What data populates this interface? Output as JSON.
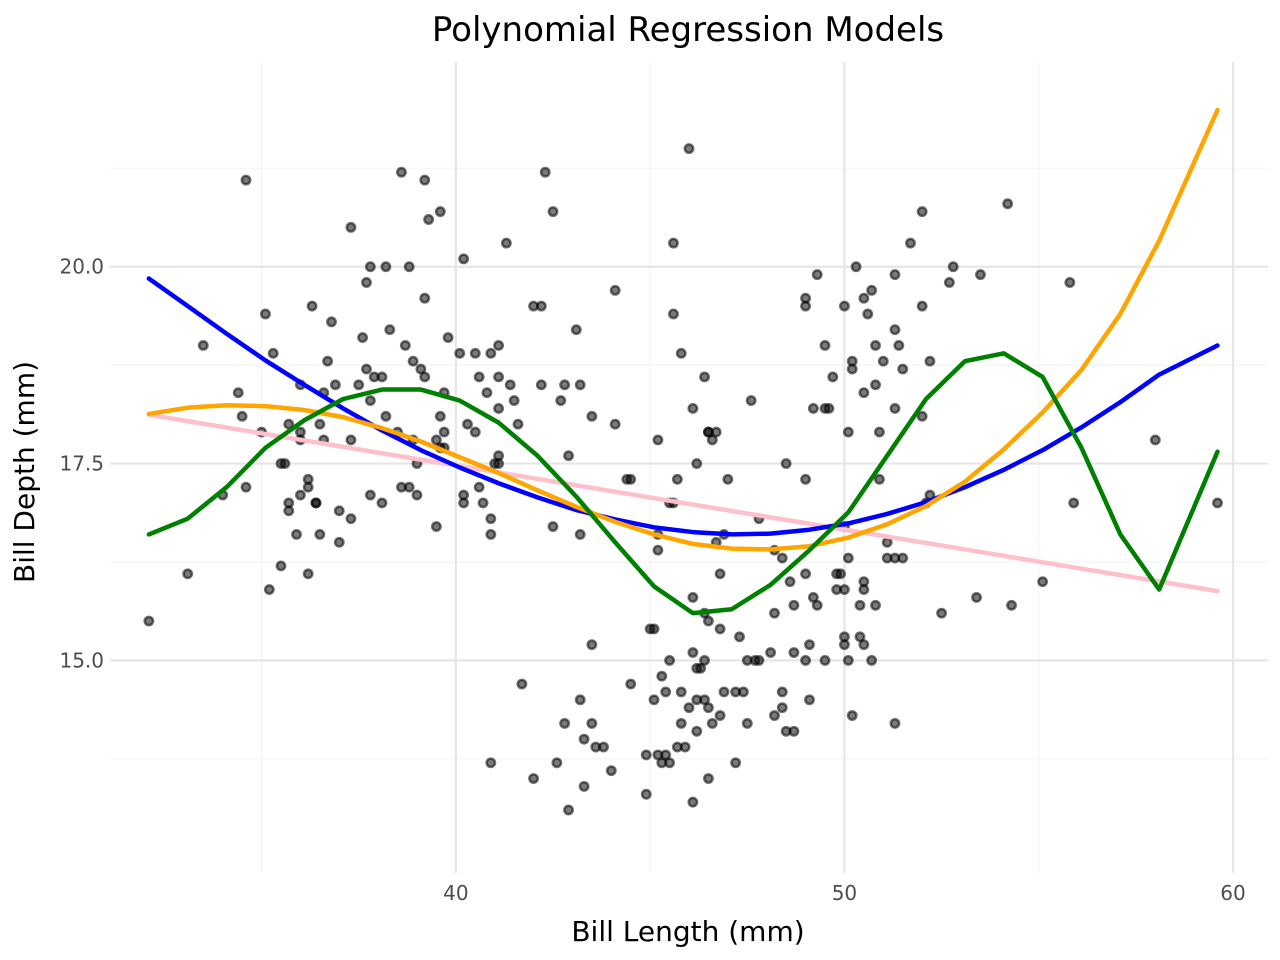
{
  "chart_data": {
    "type": "scatter",
    "title": "Polynomial Regression Models",
    "xlabel": "Bill Length (mm)",
    "ylabel": "Bill Depth (mm)",
    "xlim": [
      31.1,
      60.9
    ],
    "ylim": [
      12.3,
      22.6
    ],
    "x_ticks": [
      40,
      50,
      60
    ],
    "y_ticks": [
      15.0,
      17.5,
      20.0
    ],
    "x_tick_labels": [
      "40",
      "50",
      "60"
    ],
    "y_tick_labels": [
      "15.0",
      "17.5",
      "20.0"
    ],
    "grid": true,
    "legend": "none",
    "points": [
      [
        32.1,
        15.5
      ],
      [
        33.1,
        16.1
      ],
      [
        33.5,
        19.0
      ],
      [
        34.0,
        17.1
      ],
      [
        34.4,
        18.4
      ],
      [
        34.5,
        18.1
      ],
      [
        34.6,
        21.1
      ],
      [
        34.6,
        17.2
      ],
      [
        35.0,
        17.9
      ],
      [
        35.1,
        19.4
      ],
      [
        35.2,
        15.9
      ],
      [
        35.3,
        18.9
      ],
      [
        35.5,
        16.2
      ],
      [
        35.5,
        17.5
      ],
      [
        35.6,
        17.5
      ],
      [
        35.7,
        16.9
      ],
      [
        35.7,
        17.0
      ],
      [
        35.7,
        18.0
      ],
      [
        35.9,
        16.6
      ],
      [
        36.0,
        17.8
      ],
      [
        36.0,
        17.9
      ],
      [
        36.0,
        18.5
      ],
      [
        36.0,
        17.1
      ],
      [
        36.2,
        16.1
      ],
      [
        36.2,
        17.2
      ],
      [
        36.2,
        17.3
      ],
      [
        36.3,
        19.5
      ],
      [
        36.4,
        17.0
      ],
      [
        36.5,
        16.6
      ],
      [
        36.5,
        18.0
      ],
      [
        36.6,
        17.8
      ],
      [
        36.6,
        18.4
      ],
      [
        36.7,
        18.8
      ],
      [
        36.8,
        19.3
      ],
      [
        36.9,
        18.5
      ],
      [
        37.0,
        16.5
      ],
      [
        37.0,
        16.9
      ],
      [
        37.3,
        16.8
      ],
      [
        37.3,
        17.8
      ],
      [
        37.3,
        20.5
      ],
      [
        37.5,
        18.5
      ],
      [
        37.6,
        19.1
      ],
      [
        37.7,
        18.7
      ],
      [
        37.7,
        19.8
      ],
      [
        37.8,
        17.1
      ],
      [
        37.8,
        18.3
      ],
      [
        37.8,
        20.0
      ],
      [
        37.9,
        18.6
      ],
      [
        38.1,
        17.0
      ],
      [
        38.1,
        18.6
      ],
      [
        38.2,
        18.1
      ],
      [
        38.2,
        20.0
      ],
      [
        38.3,
        19.2
      ],
      [
        38.5,
        17.9
      ],
      [
        38.6,
        17.2
      ],
      [
        38.6,
        21.2
      ],
      [
        38.7,
        19.0
      ],
      [
        38.8,
        17.2
      ],
      [
        38.8,
        20.0
      ],
      [
        38.9,
        17.8
      ],
      [
        38.9,
        18.8
      ],
      [
        39.0,
        17.1
      ],
      [
        39.0,
        17.5
      ],
      [
        39.1,
        18.7
      ],
      [
        39.2,
        18.6
      ],
      [
        39.2,
        19.6
      ],
      [
        39.2,
        21.1
      ],
      [
        39.3,
        20.6
      ],
      [
        39.5,
        16.7
      ],
      [
        39.5,
        17.8
      ],
      [
        39.6,
        17.7
      ],
      [
        39.6,
        18.1
      ],
      [
        39.6,
        20.7
      ],
      [
        39.7,
        17.7
      ],
      [
        39.7,
        17.9
      ],
      [
        39.7,
        18.4
      ],
      [
        39.8,
        19.1
      ],
      [
        40.1,
        18.9
      ],
      [
        40.2,
        17.0
      ],
      [
        40.2,
        17.1
      ],
      [
        40.2,
        20.1
      ],
      [
        40.3,
        18.0
      ],
      [
        40.5,
        18.9
      ],
      [
        40.5,
        17.9
      ],
      [
        40.6,
        17.2
      ],
      [
        40.6,
        18.6
      ],
      [
        40.7,
        17.0
      ],
      [
        40.8,
        18.4
      ],
      [
        40.9,
        16.6
      ],
      [
        40.9,
        16.8
      ],
      [
        40.9,
        18.9
      ],
      [
        41.0,
        17.5
      ],
      [
        41.1,
        18.2
      ],
      [
        41.1,
        19.0
      ],
      [
        41.1,
        17.6
      ],
      [
        41.1,
        18.6
      ],
      [
        41.3,
        20.3
      ],
      [
        41.4,
        18.5
      ],
      [
        41.5,
        18.3
      ],
      [
        41.6,
        18.0
      ],
      [
        42.0,
        19.5
      ],
      [
        42.2,
        18.5
      ],
      [
        42.2,
        19.5
      ],
      [
        42.3,
        21.2
      ],
      [
        42.5,
        16.7
      ],
      [
        42.5,
        20.7
      ],
      [
        42.7,
        18.3
      ],
      [
        42.8,
        18.5
      ],
      [
        42.9,
        17.6
      ],
      [
        43.1,
        19.2
      ],
      [
        43.2,
        16.6
      ],
      [
        43.2,
        18.5
      ],
      [
        43.5,
        18.1
      ],
      [
        44.1,
        18.0
      ],
      [
        44.1,
        19.7
      ],
      [
        44.5,
        17.3
      ],
      [
        45.2,
        17.8
      ],
      [
        45.6,
        20.3
      ],
      [
        45.6,
        19.4
      ],
      [
        45.8,
        18.9
      ],
      [
        46.0,
        21.5
      ],
      [
        46.1,
        18.2
      ],
      [
        46.2,
        17.5
      ],
      [
        46.4,
        18.6
      ],
      [
        46.5,
        17.9
      ],
      [
        46.6,
        17.8
      ],
      [
        46.7,
        17.9
      ],
      [
        47.0,
        17.3
      ],
      [
        47.6,
        18.3
      ],
      [
        48.5,
        17.5
      ],
      [
        49.0,
        19.5
      ],
      [
        49.0,
        19.6
      ],
      [
        49.2,
        18.2
      ],
      [
        49.3,
        19.9
      ],
      [
        49.5,
        19.0
      ],
      [
        49.6,
        18.2
      ],
      [
        49.7,
        18.6
      ],
      [
        50.0,
        19.5
      ],
      [
        50.1,
        17.9
      ],
      [
        50.2,
        18.8
      ],
      [
        50.2,
        18.7
      ],
      [
        50.3,
        20.0
      ],
      [
        50.5,
        18.4
      ],
      [
        50.5,
        19.6
      ],
      [
        50.6,
        19.4
      ],
      [
        50.7,
        19.7
      ],
      [
        50.8,
        18.5
      ],
      [
        50.8,
        19.0
      ],
      [
        50.9,
        17.9
      ],
      [
        51.0,
        18.8
      ],
      [
        51.3,
        18.2
      ],
      [
        51.3,
        19.2
      ],
      [
        51.3,
        19.9
      ],
      [
        51.4,
        19.0
      ],
      [
        51.5,
        18.7
      ],
      [
        51.7,
        20.3
      ],
      [
        52.0,
        18.1
      ],
      [
        52.0,
        19.5
      ],
      [
        52.0,
        20.7
      ],
      [
        52.2,
        18.8
      ],
      [
        52.7,
        19.8
      ],
      [
        52.8,
        20.0
      ],
      [
        53.5,
        19.9
      ],
      [
        54.2,
        20.8
      ],
      [
        55.8,
        19.8
      ],
      [
        58.0,
        17.8
      ],
      [
        59.6,
        17.0
      ],
      [
        41.1,
        17.5
      ],
      [
        36.4,
        17.0
      ],
      [
        45.5,
        17.0
      ],
      [
        45.7,
        17.3
      ],
      [
        42.6,
        13.7
      ],
      [
        44.4,
        17.3
      ],
      [
        42.8,
        14.2
      ],
      [
        46.1,
        13.2
      ],
      [
        43.3,
        14.0
      ],
      [
        43.2,
        14.5
      ],
      [
        43.5,
        15.2
      ],
      [
        45.1,
        14.5
      ],
      [
        45.2,
        13.8
      ],
      [
        45.3,
        13.7
      ],
      [
        45.4,
        14.6
      ],
      [
        45.5,
        13.7
      ],
      [
        45.7,
        13.9
      ],
      [
        45.8,
        14.6
      ],
      [
        46.1,
        15.1
      ],
      [
        46.2,
        14.5
      ],
      [
        46.2,
        14.1
      ],
      [
        46.2,
        14.9
      ],
      [
        46.4,
        15.0
      ],
      [
        46.5,
        13.5
      ],
      [
        46.5,
        14.4
      ],
      [
        46.6,
        14.2
      ],
      [
        46.8,
        14.3
      ],
      [
        46.8,
        15.4
      ],
      [
        46.9,
        14.6
      ],
      [
        47.2,
        13.7
      ],
      [
        47.4,
        14.6
      ],
      [
        47.5,
        14.2
      ],
      [
        47.7,
        15.0
      ],
      [
        47.8,
        15.0
      ],
      [
        48.1,
        15.1
      ],
      [
        48.2,
        14.3
      ],
      [
        48.4,
        14.4
      ],
      [
        48.4,
        14.6
      ],
      [
        48.5,
        14.1
      ],
      [
        48.7,
        14.1
      ],
      [
        48.7,
        15.1
      ],
      [
        49.0,
        15.0
      ],
      [
        49.1,
        14.5
      ],
      [
        49.1,
        15.2
      ],
      [
        49.5,
        15.0
      ],
      [
        49.8,
        15.9
      ],
      [
        49.9,
        16.1
      ],
      [
        50.0,
        15.2
      ],
      [
        50.0,
        15.3
      ],
      [
        50.1,
        15.0
      ],
      [
        50.2,
        14.3
      ],
      [
        50.4,
        15.3
      ],
      [
        50.5,
        15.2
      ],
      [
        50.5,
        15.9
      ],
      [
        50.7,
        15.0
      ],
      [
        50.8,
        15.7
      ],
      [
        51.3,
        14.2
      ],
      [
        45.1,
        15.4
      ],
      [
        45.2,
        16.4
      ],
      [
        45.2,
        16.6
      ],
      [
        45.3,
        14.8
      ],
      [
        45.5,
        15.0
      ],
      [
        45.8,
        14.2
      ],
      [
        46.0,
        14.4
      ],
      [
        46.1,
        15.8
      ],
      [
        46.4,
        15.6
      ],
      [
        46.5,
        15.5
      ],
      [
        46.8,
        16.1
      ],
      [
        47.3,
        15.3
      ],
      [
        47.5,
        15.0
      ],
      [
        48.2,
        15.6
      ],
      [
        48.6,
        16.0
      ],
      [
        49.0,
        16.1
      ],
      [
        49.2,
        15.8
      ],
      [
        49.8,
        16.1
      ],
      [
        50.0,
        15.9
      ],
      [
        50.1,
        16.3
      ],
      [
        50.4,
        15.7
      ],
      [
        50.5,
        16.0
      ],
      [
        51.1,
        16.3
      ],
      [
        52.5,
        15.6
      ],
      [
        53.4,
        15.8
      ],
      [
        54.3,
        15.7
      ],
      [
        55.1,
        16.0
      ],
      [
        45.4,
        13.8
      ],
      [
        44.9,
        13.3
      ],
      [
        43.8,
        13.9
      ],
      [
        43.3,
        13.4
      ],
      [
        42.0,
        13.5
      ],
      [
        40.9,
        13.7
      ],
      [
        42.9,
        13.1
      ],
      [
        41.7,
        14.7
      ],
      [
        43.6,
        13.9
      ],
      [
        44.0,
        13.6
      ],
      [
        44.5,
        14.7
      ],
      [
        43.5,
        14.2
      ],
      [
        44.9,
        13.8
      ],
      [
        45.9,
        13.9
      ],
      [
        46.4,
        14.5
      ],
      [
        47.2,
        14.6
      ],
      [
        48.7,
        15.7
      ],
      [
        49.3,
        15.7
      ],
      [
        51.5,
        16.3
      ],
      [
        45.0,
        15.4
      ],
      [
        46.3,
        14.9
      ],
      [
        46.7,
        16.5
      ],
      [
        48.2,
        16.4
      ],
      [
        48.4,
        16.3
      ],
      [
        49.0,
        17.3
      ],
      [
        49.5,
        18.2
      ],
      [
        50.9,
        17.3
      ],
      [
        50.0,
        16.7
      ],
      [
        51.1,
        16.5
      ],
      [
        51.3,
        16.3
      ],
      [
        52.1,
        17.0
      ],
      [
        52.2,
        17.1
      ],
      [
        55.9,
        17.0
      ],
      [
        46.5,
        17.9
      ],
      [
        46.9,
        16.6
      ],
      [
        47.8,
        16.8
      ],
      [
        45.6,
        17.0
      ]
    ],
    "series": [
      {
        "color": "#ffc0cb",
        "x": [
          32.1,
          59.6
        ],
        "y": [
          18.12,
          15.88
        ]
      },
      {
        "color": "#0000ff",
        "x": [
          32.1,
          33.1,
          34.1,
          35.1,
          36.1,
          37.1,
          38.1,
          39.1,
          40.1,
          41.1,
          42.1,
          43.1,
          44.1,
          45.1,
          46.1,
          47.1,
          48.1,
          49.1,
          50.1,
          51.1,
          52.1,
          53.1,
          54.1,
          55.1,
          56.1,
          57.1,
          58.1,
          59.6
        ],
        "y": [
          19.85,
          19.5,
          19.15,
          18.81,
          18.5,
          18.2,
          17.92,
          17.67,
          17.45,
          17.25,
          17.07,
          16.91,
          16.79,
          16.69,
          16.63,
          16.6,
          16.61,
          16.66,
          16.74,
          16.86,
          17.01,
          17.2,
          17.42,
          17.67,
          17.96,
          18.28,
          18.63,
          19.0
        ]
      },
      {
        "color": "#ffa500",
        "x": [
          32.1,
          33.1,
          34.1,
          35.1,
          36.1,
          37.1,
          38.1,
          39.1,
          40.1,
          41.1,
          42.1,
          43.1,
          44.1,
          45.1,
          46.1,
          47.1,
          48.1,
          49.1,
          50.1,
          51.1,
          52.1,
          53.1,
          54.1,
          55.1,
          56.1,
          57.1,
          58.1,
          59.6
        ],
        "y": [
          18.13,
          18.21,
          18.24,
          18.23,
          18.18,
          18.09,
          17.95,
          17.78,
          17.58,
          17.38,
          17.16,
          16.95,
          16.76,
          16.6,
          16.48,
          16.42,
          16.41,
          16.45,
          16.56,
          16.73,
          16.96,
          17.27,
          17.68,
          18.15,
          18.69,
          19.4,
          20.33,
          21.99
        ]
      },
      {
        "color": "#008000",
        "x": [
          32.1,
          33.1,
          34.1,
          35.1,
          36.1,
          37.1,
          38.1,
          39.1,
          40.1,
          41.1,
          42.1,
          43.1,
          44.1,
          45.1,
          46.1,
          47.1,
          48.1,
          49.1,
          50.1,
          51.1,
          52.1,
          53.1,
          54.1,
          55.1,
          56.1,
          57.1,
          58.1,
          59.6
        ],
        "y": [
          16.6,
          16.8,
          17.2,
          17.7,
          18.05,
          18.32,
          18.44,
          18.44,
          18.3,
          18.02,
          17.6,
          17.08,
          16.5,
          15.94,
          15.6,
          15.65,
          15.96,
          16.4,
          16.88,
          17.6,
          18.32,
          18.8,
          18.9,
          18.6,
          17.7,
          16.6,
          15.9,
          17.65
        ]
      }
    ]
  }
}
